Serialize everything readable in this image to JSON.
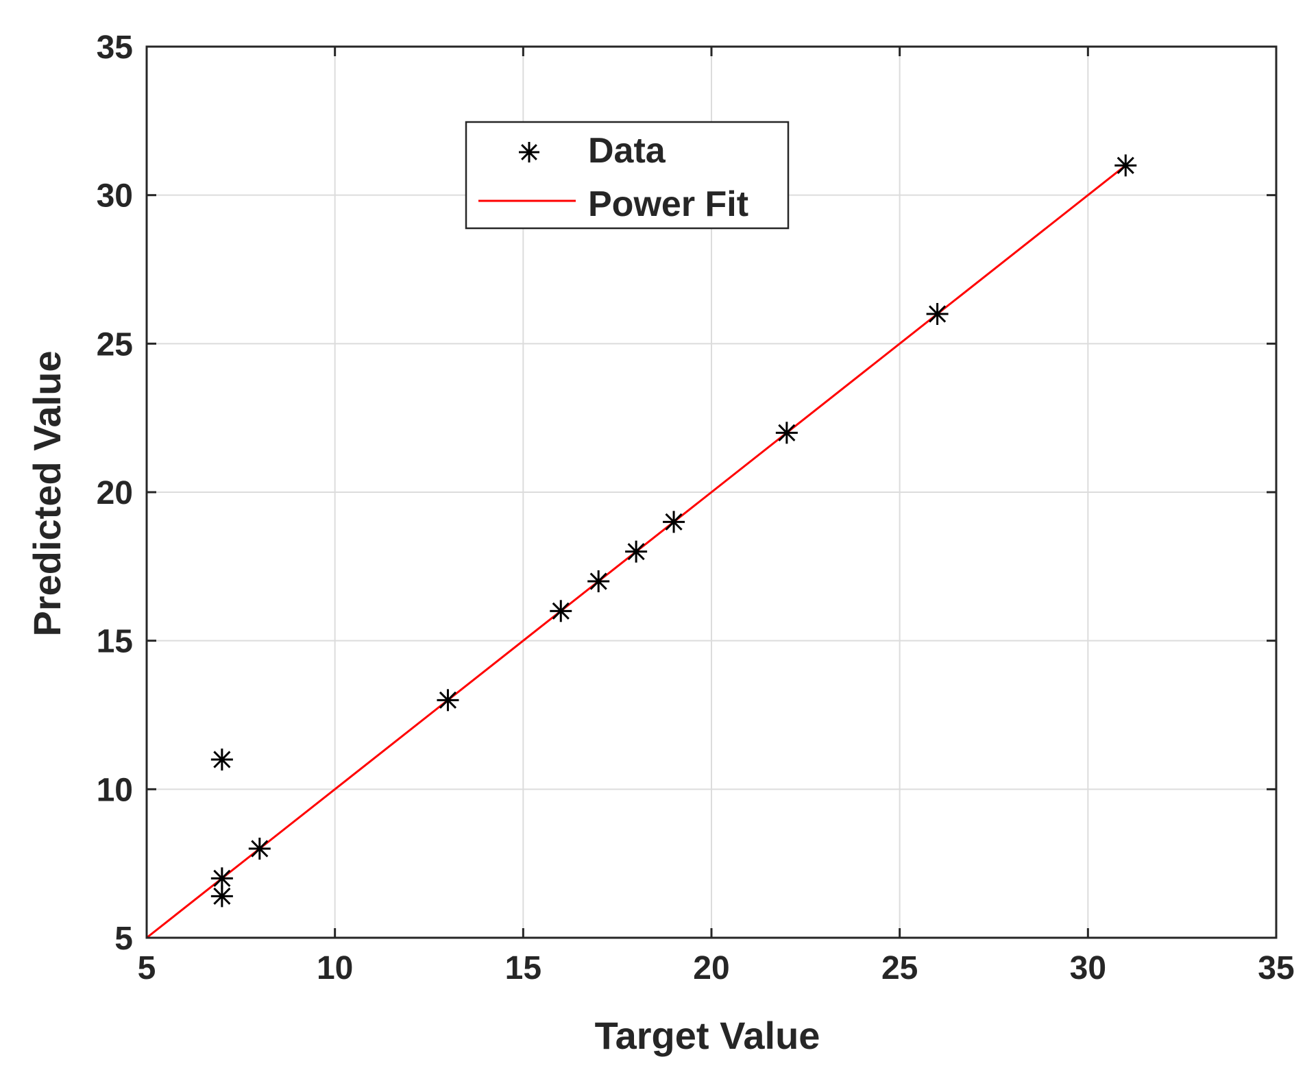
{
  "chart_data": {
    "type": "scatter",
    "xlabel": "Target Value",
    "ylabel": "Predicted Value",
    "xlim": [
      5,
      35
    ],
    "ylim": [
      5,
      35
    ],
    "xticks": [
      5,
      10,
      15,
      20,
      25,
      30,
      35
    ],
    "yticks": [
      5,
      10,
      15,
      20,
      25,
      30,
      35
    ],
    "grid": true,
    "legend_position": "top-center",
    "series": [
      {
        "name": "Data",
        "marker": "asterisk",
        "color": "#000000",
        "points": [
          {
            "x": 7,
            "y": 11
          },
          {
            "x": 7,
            "y": 7
          },
          {
            "x": 7,
            "y": 6.4
          },
          {
            "x": 8,
            "y": 8
          },
          {
            "x": 13,
            "y": 13
          },
          {
            "x": 16,
            "y": 16
          },
          {
            "x": 17,
            "y": 17
          },
          {
            "x": 18,
            "y": 18
          },
          {
            "x": 19,
            "y": 19
          },
          {
            "x": 22,
            "y": 22
          },
          {
            "x": 26,
            "y": 26
          },
          {
            "x": 31,
            "y": 31
          }
        ]
      },
      {
        "name": "Power Fit",
        "type": "line",
        "color": "#ff0000",
        "points": [
          {
            "x": 5,
            "y": 5
          },
          {
            "x": 31,
            "y": 31
          }
        ]
      }
    ]
  }
}
